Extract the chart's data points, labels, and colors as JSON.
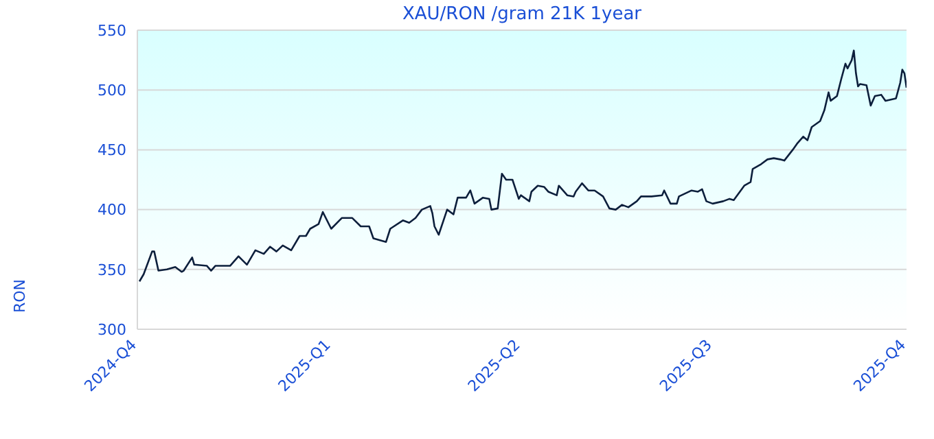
{
  "chart_data": {
    "type": "line",
    "title": "XAU/RON /gram 21K 1year",
    "ylabel": "RON",
    "x": [
      "2024-10-02",
      "2024-10-04",
      "2024-10-08",
      "2024-10-09",
      "2024-10-11",
      "2024-10-15",
      "2024-10-19",
      "2024-10-22",
      "2024-10-23",
      "2024-10-27",
      "2024-10-28",
      "2024-11-03",
      "2024-11-05",
      "2024-11-07",
      "2024-11-14",
      "2024-11-18",
      "2024-11-22",
      "2024-11-26",
      "2024-11-30",
      "2024-12-03",
      "2024-12-06",
      "2024-12-09",
      "2024-12-13",
      "2024-12-17",
      "2024-12-20",
      "2024-12-22",
      "2024-12-26",
      "2024-12-28",
      "2025-01-01",
      "2025-01-06",
      "2025-01-11",
      "2025-01-15",
      "2025-01-19",
      "2025-01-21",
      "2025-01-27",
      "2025-01-29",
      "2025-02-04",
      "2025-02-07",
      "2025-02-10",
      "2025-02-13",
      "2025-02-17",
      "2025-02-18",
      "2025-02-19",
      "2025-02-21",
      "2025-02-25",
      "2025-02-28",
      "2025-03-02",
      "2025-03-06",
      "2025-03-08",
      "2025-03-10",
      "2025-03-14",
      "2025-03-17",
      "2025-03-18",
      "2025-03-21",
      "2025-03-23",
      "2025-03-25",
      "2025-03-28",
      "2025-03-31",
      "2025-04-01",
      "2025-04-05",
      "2025-04-06",
      "2025-04-09",
      "2025-04-12",
      "2025-04-14",
      "2025-04-18",
      "2025-04-19",
      "2025-04-23",
      "2025-04-26",
      "2025-04-27",
      "2025-04-30",
      "2025-05-03",
      "2025-05-06",
      "2025-05-10",
      "2025-05-13",
      "2025-05-16",
      "2025-05-19",
      "2025-05-22",
      "2025-05-26",
      "2025-05-28",
      "2025-06-02",
      "2025-06-07",
      "2025-06-08",
      "2025-06-11",
      "2025-06-14",
      "2025-06-15",
      "2025-06-21",
      "2025-06-24",
      "2025-06-26",
      "2025-06-28",
      "2025-07-01",
      "2025-07-06",
      "2025-07-09",
      "2025-07-11",
      "2025-07-16",
      "2025-07-19",
      "2025-07-20",
      "2025-07-24",
      "2025-07-27",
      "2025-07-30",
      "2025-08-02",
      "2025-08-04",
      "2025-08-08",
      "2025-08-10",
      "2025-08-13",
      "2025-08-15",
      "2025-08-17",
      "2025-08-21",
      "2025-08-23",
      "2025-08-25",
      "2025-08-26",
      "2025-08-29",
      "2025-08-31",
      "2025-09-02",
      "2025-09-03",
      "2025-09-05",
      "2025-09-06",
      "2025-09-07",
      "2025-09-08",
      "2025-09-09",
      "2025-09-12",
      "2025-09-14",
      "2025-09-16",
      "2025-09-19",
      "2025-09-21",
      "2025-09-26",
      "2025-09-28",
      "2025-09-29",
      "2025-09-30",
      "2025-10-01"
    ],
    "series": [
      {
        "color": "#0d1f3c",
        "values": [
          340,
          346,
          365,
          365,
          349,
          350,
          352,
          348,
          349,
          360,
          354,
          353,
          349,
          353,
          353,
          361,
          354,
          366,
          363,
          369,
          365,
          370,
          366,
          378,
          378,
          384,
          388,
          398,
          384,
          393,
          393,
          386,
          386,
          376,
          373,
          384,
          391,
          389,
          393,
          400,
          403,
          397,
          386,
          379,
          400,
          396,
          410,
          410,
          416,
          405,
          410,
          409,
          400,
          401,
          430,
          425,
          425,
          409,
          412,
          407,
          415,
          420,
          419,
          415,
          412,
          420,
          412,
          411,
          415,
          422,
          416,
          416,
          411,
          401,
          400,
          404,
          402,
          407,
          411,
          411,
          412,
          416,
          405,
          405,
          411,
          416,
          415,
          417,
          407,
          405,
          407,
          409,
          408,
          420,
          423,
          434,
          438,
          442,
          443,
          442,
          441,
          450,
          455,
          461,
          458,
          469,
          474,
          483,
          498,
          491,
          495,
          509,
          522,
          518,
          525,
          533,
          514,
          503,
          505,
          504,
          487,
          495,
          496,
          491,
          493,
          506,
          517,
          514,
          502
        ]
      }
    ],
    "xlim": [
      "2024-10-01",
      "2025-10-01"
    ],
    "xticks": [
      {
        "value": "2024-10-01",
        "label": "2024-Q4"
      },
      {
        "value": "2025-01-01",
        "label": "2025-Q1"
      },
      {
        "value": "2025-04-01",
        "label": "2025-Q2"
      },
      {
        "value": "2025-07-01",
        "label": "2025-Q3"
      },
      {
        "value": "2025-10-01",
        "label": "2025-Q4"
      }
    ],
    "ylim": [
      300,
      550
    ],
    "yticks": [
      300,
      350,
      400,
      450,
      500,
      550
    ],
    "grid": "y",
    "legend": false,
    "marker": "none",
    "line_style": "solid"
  }
}
